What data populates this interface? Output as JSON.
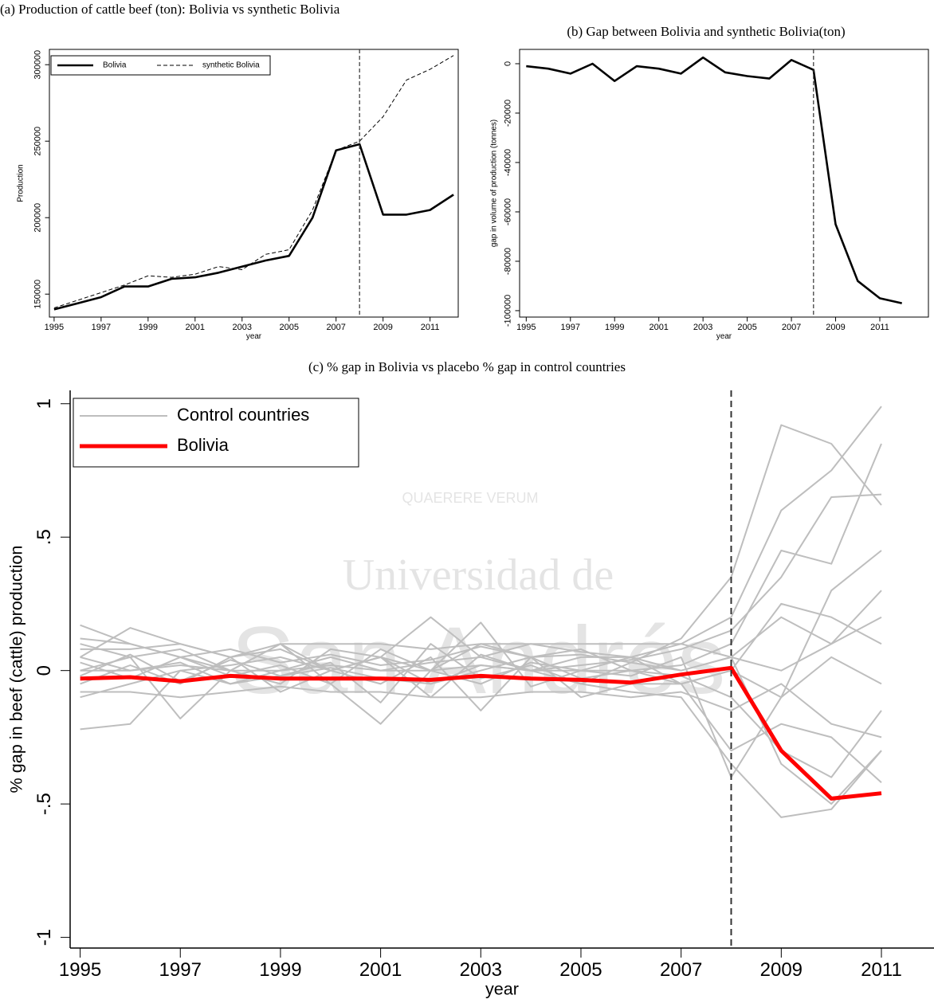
{
  "watermark": {
    "line1": "Universidad de",
    "line2": "San Andrés",
    "motto": "QUAERERE VERUM"
  },
  "chart_data": [
    {
      "type": "line",
      "title": "(a) Production of cattle beef (ton): Bolivia vs synthetic Bolivia",
      "x_label": "year",
      "y_label": "Production",
      "x": [
        1995,
        1996,
        1997,
        1998,
        1999,
        2000,
        2001,
        2002,
        2003,
        2004,
        2005,
        2006,
        2007,
        2008,
        2009,
        2010,
        2011,
        2012
      ],
      "series": [
        {
          "name": "Bolivia",
          "color": "#000000",
          "style": "solid",
          "values": [
            140000,
            144000,
            148000,
            155000,
            155000,
            160000,
            161000,
            164000,
            168000,
            172000,
            175000,
            200000,
            244000,
            248000,
            202000,
            202000,
            205000,
            215000
          ]
        },
        {
          "name": "synthetic Bolivia",
          "color": "#000000",
          "style": "dashed",
          "values": [
            141000,
            146000,
            151000,
            156000,
            162000,
            161000,
            163000,
            168000,
            166000,
            176000,
            179000,
            205000,
            244000,
            250000,
            266000,
            290000,
            297000,
            306000
          ]
        }
      ],
      "xlim": [
        1994.8,
        2012.2
      ],
      "xticks": [
        1995,
        1997,
        1999,
        2001,
        2003,
        2005,
        2007,
        2009,
        2011
      ],
      "ylim": [
        135000,
        310000
      ],
      "yticks": [
        150000,
        200000,
        250000,
        300000
      ],
      "vline": 2008,
      "legend": "top-left"
    },
    {
      "type": "line",
      "title": "(b) Gap between Bolivia and synthetic Bolivia(ton)",
      "x_label": "year",
      "y_label": "gap in volume of production (tonnes)",
      "x": [
        1995,
        1996,
        1997,
        1998,
        1999,
        2000,
        2001,
        2002,
        2003,
        2004,
        2005,
        2006,
        2007,
        2008,
        2009,
        2010,
        2011,
        2012
      ],
      "values": [
        -1000,
        -2000,
        -4000,
        0,
        -7000,
        -1000,
        -2000,
        -4000,
        2500,
        -3500,
        -5000,
        -6000,
        1500,
        -2500,
        -65000,
        -88000,
        -95000,
        -97000
      ],
      "color": "#000000",
      "xlim": [
        1994.7,
        2013.2
      ],
      "xticks": [
        1995,
        1997,
        1999,
        2001,
        2003,
        2005,
        2007,
        2009,
        2011
      ],
      "ylim": [
        -102600,
        5800
      ],
      "yticks": [
        0,
        -20000,
        -40000,
        -60000,
        -80000,
        -100000
      ],
      "vline": 2008
    },
    {
      "type": "line",
      "title": "(c) % gap in Bolivia vs placebo % gap in control countries",
      "x_label": "year",
      "y_label": "% gap in beef (cattle) production",
      "x": [
        1995,
        1996,
        1997,
        1998,
        1999,
        2000,
        2001,
        2002,
        2003,
        2004,
        2005,
        2006,
        2007,
        2008,
        2009,
        2010,
        2011
      ],
      "series": [
        {
          "name": "Control countries",
          "color": "#bebebe",
          "lines": [
            [
              0.17,
              0.1,
              0.05,
              0.08,
              0.03,
              0.06,
              0.02,
              0.04,
              0.09,
              0.05,
              0.06,
              0.03,
              0.12,
              0.35,
              0.92,
              0.85,
              0.62
            ],
            [
              -0.22,
              -0.2,
              0,
              -0.05,
              -0.02,
              0.01,
              -0.03,
              -0.05,
              0.02,
              0,
              -0.05,
              -0.08,
              -0.1,
              -0.35,
              -0.55,
              -0.52,
              -0.3
            ],
            [
              0.05,
              0.16,
              0.1,
              0.05,
              0.08,
              0,
              0.05,
              0.2,
              0.05,
              0.1,
              0.07,
              0.05,
              0.1,
              0.2,
              0.6,
              0.75,
              0.99
            ],
            [
              0,
              0.05,
              -0.18,
              0,
              0.1,
              -0.05,
              -0.2,
              0,
              0.18,
              -0.06,
              0,
              -0.02,
              0.05,
              -0.4,
              -0.1,
              0.3,
              0.45
            ],
            [
              0.1,
              0.05,
              0.08,
              0,
              -0.05,
              0.08,
              0.05,
              -0.1,
              0.06,
              0,
              0.02,
              0.04,
              0.08,
              0.15,
              0.35,
              0.65,
              0.66
            ],
            [
              -0.1,
              -0.05,
              0,
              0.02,
              0.05,
              0,
              -0.05,
              0.05,
              -0.15,
              0.05,
              -0.1,
              -0.05,
              -0.05,
              -0.3,
              -0.2,
              -0.25,
              -0.42
            ],
            [
              0.05,
              0,
              0.03,
              -0.05,
              0,
              0.05,
              0,
              0.03,
              0.05,
              0,
              0.05,
              0.05,
              0,
              0.05,
              0.2,
              0.1,
              0.3
            ],
            [
              -0.05,
              0.02,
              -0.05,
              0.05,
              -0.08,
              0,
              0.05,
              -0.05,
              0,
              0.05,
              -0.03,
              0,
              -0.02,
              -0.1,
              -0.3,
              -0.4,
              -0.15
            ],
            [
              0.08,
              0.08,
              0.1,
              0.05,
              0.1,
              0.1,
              0.1,
              0.08,
              0.1,
              0.1,
              0.1,
              0.1,
              0.1,
              0.05,
              0,
              0.1,
              0.2
            ],
            [
              -0.08,
              -0.08,
              -0.1,
              -0.08,
              -0.06,
              -0.08,
              -0.08,
              -0.1,
              -0.1,
              -0.08,
              -0.08,
              -0.1,
              -0.08,
              -0.15,
              -0.05,
              -0.2,
              -0.25
            ],
            [
              0,
              0,
              0.02,
              0,
              0,
              0.02,
              0,
              0,
              0.02,
              0,
              0,
              0,
              0.02,
              0.1,
              0.45,
              0.4,
              0.85
            ],
            [
              0.03,
              -0.03,
              0.05,
              -0.02,
              0.02,
              -0.05,
              0.08,
              0,
              -0.05,
              0.03,
              0,
              0.05,
              -0.05,
              0,
              -0.1,
              0.05,
              -0.05
            ],
            [
              0.12,
              0.1,
              0.05,
              0,
              0.1,
              0,
              0.05,
              0,
              0.1,
              0.05,
              0.08,
              0,
              -0.05,
              0,
              0.25,
              0.2,
              0.1
            ],
            [
              -0.02,
              0.06,
              -0.04,
              0.04,
              -0.02,
              0.03,
              -0.12,
              0.1,
              -0.03,
              0.02,
              -0.05,
              0.03,
              0,
              0.05,
              -0.35,
              -0.5,
              -0.3
            ]
          ]
        },
        {
          "name": "Bolivia",
          "color": "#ff0000",
          "values": [
            -0.03,
            -0.025,
            -0.04,
            -0.02,
            -0.03,
            -0.03,
            -0.03,
            -0.035,
            -0.02,
            -0.03,
            -0.035,
            -0.045,
            -0.015,
            0.01,
            -0.3,
            -0.48,
            -0.46
          ]
        }
      ],
      "xlim": [
        1994.8,
        2012.05
      ],
      "xticks": [
        1995,
        1997,
        1999,
        2001,
        2003,
        2005,
        2007,
        2009,
        2011
      ],
      "ylim": [
        -1.04,
        1.05
      ],
      "yticks": [
        -1,
        {
          "value": -0.5,
          "label": "-.5"
        },
        0,
        {
          "value": 0.5,
          "label": ".5"
        },
        1
      ],
      "vline": 2008,
      "legend": "top-left"
    }
  ]
}
